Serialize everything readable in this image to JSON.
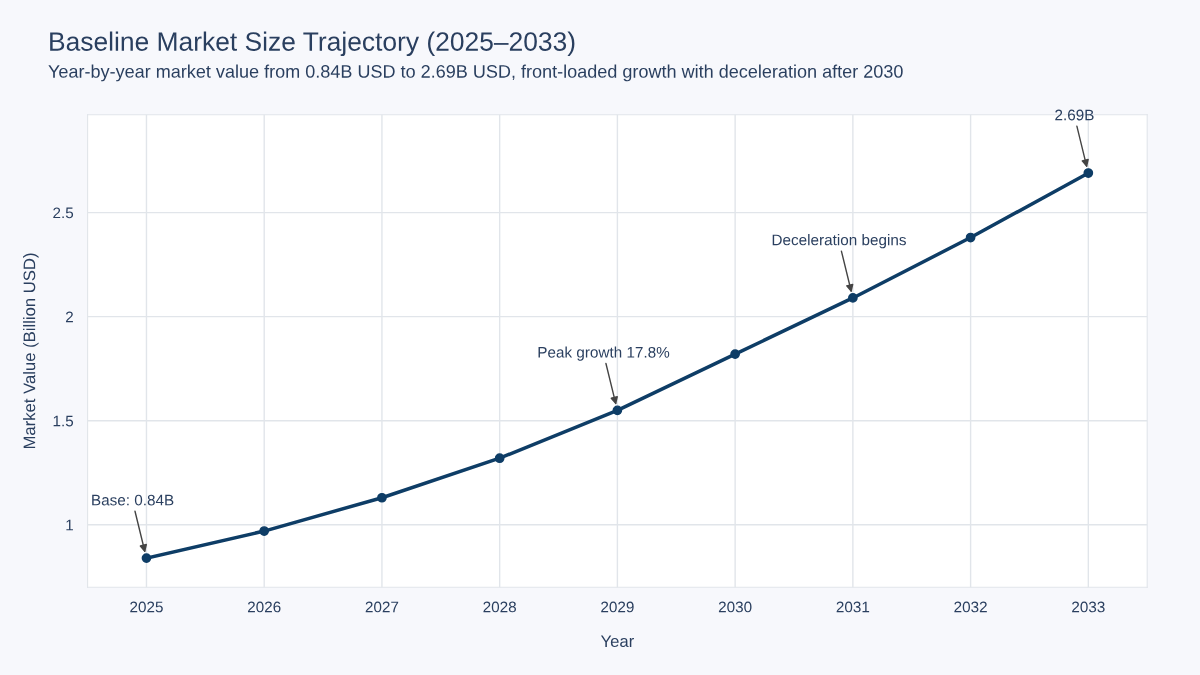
{
  "chart_data": {
    "type": "line",
    "title": "Baseline Market Size Trajectory (2025–2033)",
    "subtitle": "Year-by-year market value from 0.84B USD to 2.69B USD, front-loaded growth with deceleration after 2030",
    "xlabel": "Year",
    "ylabel": "Market Value (Billion USD)",
    "x": [
      2025,
      2026,
      2027,
      2028,
      2029,
      2030,
      2031,
      2032,
      2033
    ],
    "series": [
      {
        "color": "#0e3d66",
        "values": [
          0.84,
          0.97,
          1.13,
          1.32,
          1.55,
          1.82,
          2.09,
          2.38,
          2.69
        ]
      }
    ],
    "xlim": [
      2024.5,
      2033.5
    ],
    "ylim": [
      0.7,
      2.97
    ],
    "xticks": [
      2025,
      2026,
      2027,
      2028,
      2029,
      2030,
      2031,
      2032,
      2033
    ],
    "yticks": [
      1,
      1.5,
      2,
      2.5
    ],
    "grid": true,
    "marker": "circle",
    "line_style": "solid",
    "annotations": [
      {
        "text": "Base: 0.84B",
        "x": 2025,
        "y": 0.84
      },
      {
        "text": "Peak growth 17.8%",
        "x": 2029,
        "y": 1.55
      },
      {
        "text": "Deceleration begins",
        "x": 2031,
        "y": 2.09
      },
      {
        "text": "2.69B",
        "x": 2033,
        "y": 2.69
      }
    ]
  }
}
